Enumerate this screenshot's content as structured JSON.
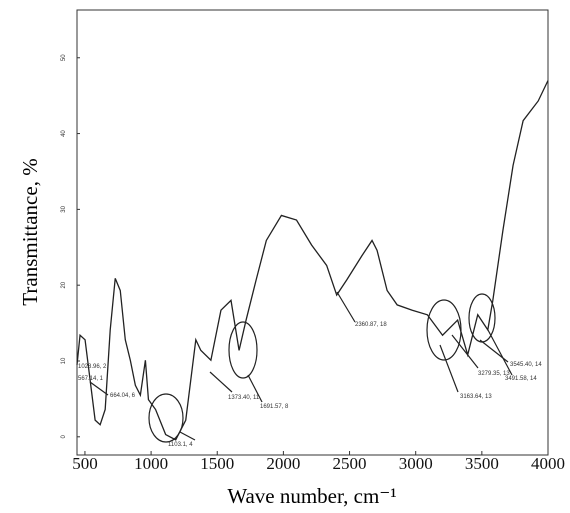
{
  "chart_data": {
    "type": "line",
    "xlabel": "Wave number, cm⁻¹",
    "ylabel": "Transmittance, %",
    "series": [
      {
        "color": "#222222",
        "x": [
          440,
          463,
          501,
          539,
          577,
          615,
          653,
          691,
          729,
          767,
          805,
          843,
          881,
          919,
          957,
          980,
          1034,
          1110,
          1186,
          1262,
          1338,
          1376,
          1452,
          1528,
          1604,
          1665,
          1718,
          1794,
          1871,
          1985,
          2099,
          2213,
          2327,
          2403,
          2479,
          2594,
          2670,
          2708,
          2784,
          2860,
          2974,
          3088,
          3203,
          3317,
          3393,
          3469,
          3545,
          3583,
          3659,
          3736,
          3812,
          3926,
          4000
        ],
        "values": [
          9.5,
          13.4,
          12.8,
          7.5,
          2.2,
          1.6,
          3.6,
          14.1,
          20.9,
          19.3,
          12.8,
          10.1,
          6.8,
          5.5,
          10.1,
          4.9,
          3.6,
          0.3,
          -0.4,
          2.2,
          12.8,
          11.4,
          10.1,
          16.7,
          18.0,
          11.4,
          15.4,
          20.7,
          25.9,
          29.2,
          28.6,
          25.3,
          22.6,
          18.7,
          20.7,
          23.9,
          25.9,
          24.6,
          19.3,
          17.4,
          16.7,
          16.1,
          13.4,
          15.4,
          10.8,
          16.1,
          14.1,
          18.0,
          27.2,
          35.8,
          41.7,
          44.3,
          47.0
        ]
      }
    ],
    "xlim": [
      440,
      4000
    ],
    "xticks": [
      500,
      1000,
      1500,
      2000,
      2500,
      3000,
      3500,
      4000
    ],
    "ylim": [
      -2.4,
      56.3
    ],
    "yticks": [
      0,
      10,
      20,
      30,
      40,
      50
    ],
    "annotations": [
      "1028.96, 2",
      "567.14, 1",
      "664.04, 6",
      "1103.1, 4",
      "1373.40, 11",
      "1691.57, 8",
      "2360.87, 18",
      "3279.35, 13",
      "3163.64, 13",
      "3545.40, 14",
      "3491.58, 14"
    ]
  }
}
